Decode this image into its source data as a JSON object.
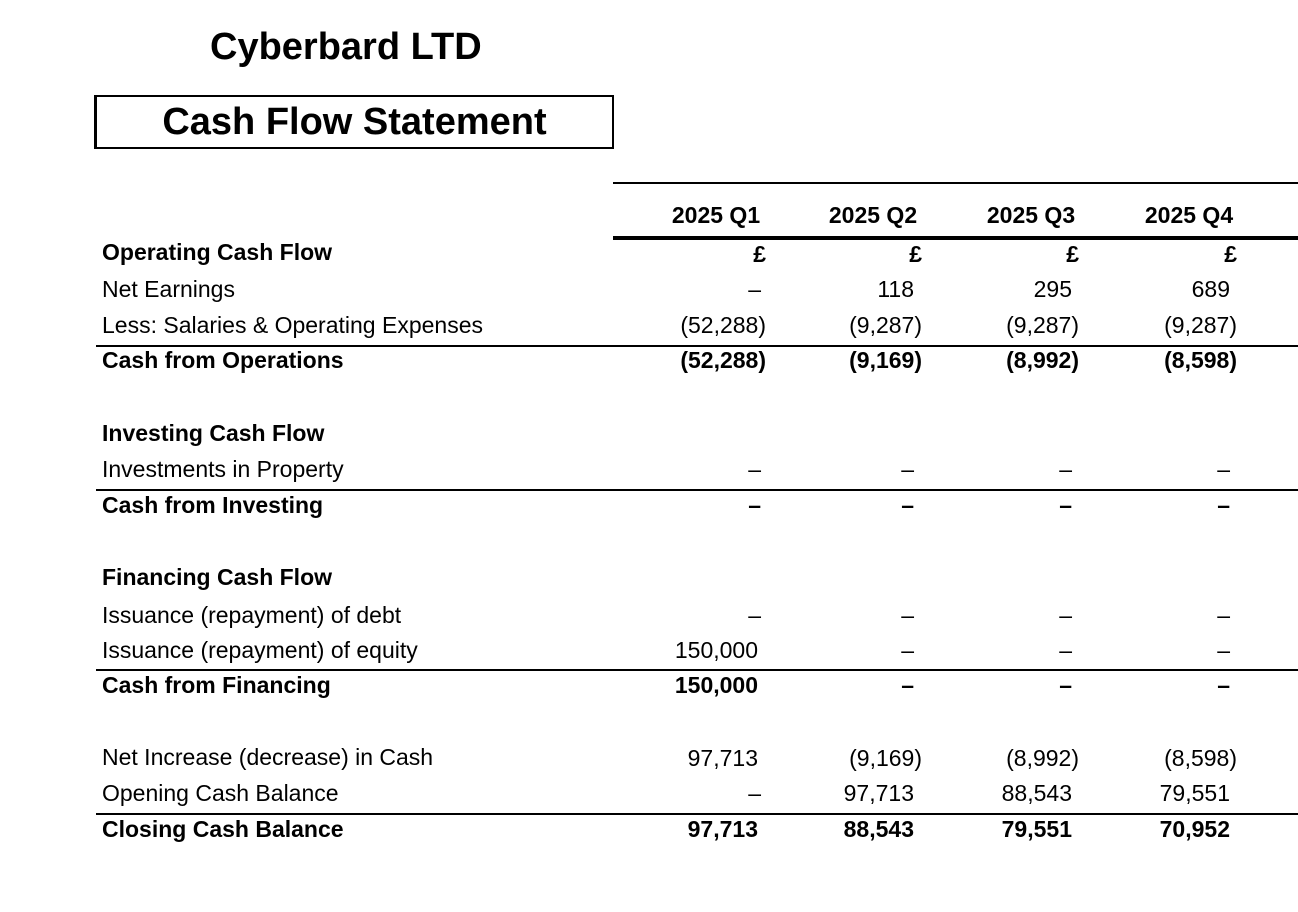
{
  "company": "Cyberbard LTD",
  "title": "Cash Flow Statement",
  "periods": [
    "2025 Q1",
    "2025 Q2",
    "2025 Q3",
    "2025 Q4"
  ],
  "currency": [
    "£",
    "£",
    "£",
    "£"
  ],
  "rows": {
    "operating_header": "Operating Cash Flow",
    "net_earnings": {
      "label": "Net Earnings",
      "values": [
        "–",
        "118",
        "295",
        "689"
      ]
    },
    "salaries": {
      "label": "Less: Salaries & Operating Expenses",
      "values": [
        "(52,288)",
        "(9,287)",
        "(9,287)",
        "(9,287)"
      ]
    },
    "cash_ops": {
      "label": "Cash from Operations",
      "values": [
        "(52,288)",
        "(9,169)",
        "(8,992)",
        "(8,598)"
      ]
    },
    "investing_header": "Investing Cash Flow",
    "inv_property": {
      "label": "Investments in Property",
      "values": [
        "–",
        "–",
        "–",
        "–"
      ]
    },
    "cash_investing": {
      "label": "Cash from Investing",
      "values": [
        "–",
        "–",
        "–",
        "–"
      ]
    },
    "financing_header": "Financing Cash Flow",
    "debt": {
      "label": "Issuance (repayment) of debt",
      "values": [
        "–",
        "–",
        "–",
        "–"
      ]
    },
    "equity": {
      "label": "Issuance (repayment) of equity",
      "values": [
        "150,000",
        "–",
        "–",
        "–"
      ]
    },
    "cash_financing": {
      "label": "Cash from Financing",
      "values": [
        "150,000",
        "–",
        "–",
        "–"
      ]
    },
    "net_increase": {
      "label": "Net Increase (decrease) in Cash",
      "values": [
        "97,713",
        "(9,169)",
        "(8,992)",
        "(8,598)"
      ]
    },
    "opening": {
      "label": "Opening Cash Balance",
      "values": [
        "–",
        "97,713",
        "88,543",
        "79,551"
      ]
    },
    "closing": {
      "label": "Closing Cash Balance",
      "values": [
        "97,713",
        "88,543",
        "79,551",
        "70,952"
      ]
    }
  }
}
